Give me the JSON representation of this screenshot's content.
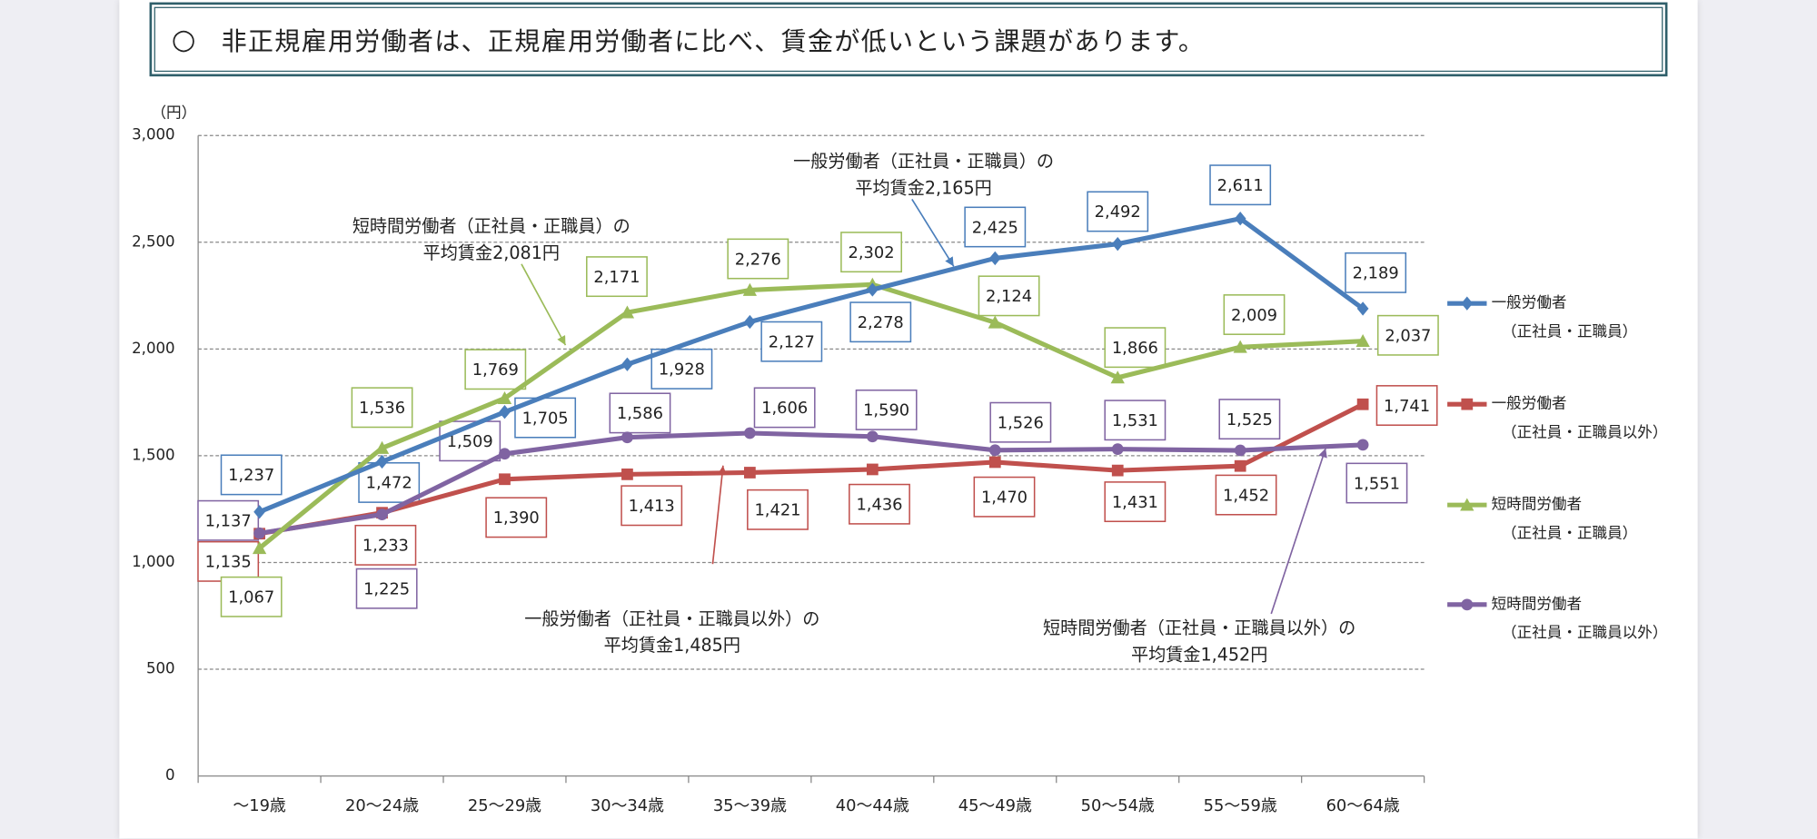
{
  "header": {
    "bullet": "○",
    "title": "非正規雇用労働者は、正規雇用労働者に比べ、賃金が低いという課題があります。"
  },
  "chart_data": {
    "type": "line",
    "title": "",
    "ylabel": "（円）",
    "xlabel": "",
    "ylim": [
      0,
      3000
    ],
    "yticks": [
      0,
      500,
      1000,
      1500,
      2000,
      2500,
      3000
    ],
    "ytick_labels": [
      "0",
      "500",
      "1,000",
      "1,500",
      "2,000",
      "2,500",
      "3,000"
    ],
    "grid": true,
    "legend_position": "right",
    "categories": [
      "～19歳",
      "20～24歳",
      "25～29歳",
      "30～34歳",
      "35～39歳",
      "40～44歳",
      "45～49歳",
      "50～54歳",
      "55～59歳",
      "60～64歳"
    ],
    "series": [
      {
        "name": "一般労働者",
        "sub": "（正社員・正職員）",
        "color": "#4a7ebb",
        "marker": "diamond",
        "values": [
          1237,
          1472,
          1705,
          1928,
          2127,
          2278,
          2425,
          2492,
          2611,
          2189
        ]
      },
      {
        "name": "一般労働者",
        "sub": "（正社員・正職員以外）",
        "color": "#c0504d",
        "marker": "square",
        "values": [
          1135,
          1233,
          1390,
          1413,
          1421,
          1436,
          1470,
          1431,
          1452,
          1741
        ]
      },
      {
        "name": "短時間労働者",
        "sub": "（正社員・正職員）",
        "color": "#9bbb59",
        "marker": "triangle",
        "values": [
          1067,
          1536,
          1769,
          2171,
          2276,
          2302,
          2124,
          1866,
          2009,
          2037
        ]
      },
      {
        "name": "短時間労働者",
        "sub": "（正社員・正職員以外）",
        "color": "#8064a2",
        "marker": "circle",
        "values": [
          1137,
          1225,
          1509,
          1586,
          1606,
          1590,
          1526,
          1531,
          1525,
          1551
        ]
      }
    ],
    "annotations": [
      {
        "line1": "一般労働者（正社員・正職員）の",
        "line2": "平均賃金2,165円",
        "color": "#4a7ebb"
      },
      {
        "line1": "短時間労働者（正社員・正職員）の",
        "line2": "平均賃金2,081円",
        "color": "#9bbb59"
      },
      {
        "line1": "一般労働者（正社員・正職員以外）の",
        "line2": "平均賃金1,485円",
        "color": "#c0504d"
      },
      {
        "line1": "短時間労働者（正社員・正職員以外）の",
        "line2": "平均賃金1,452円",
        "color": "#8064a2"
      }
    ]
  }
}
